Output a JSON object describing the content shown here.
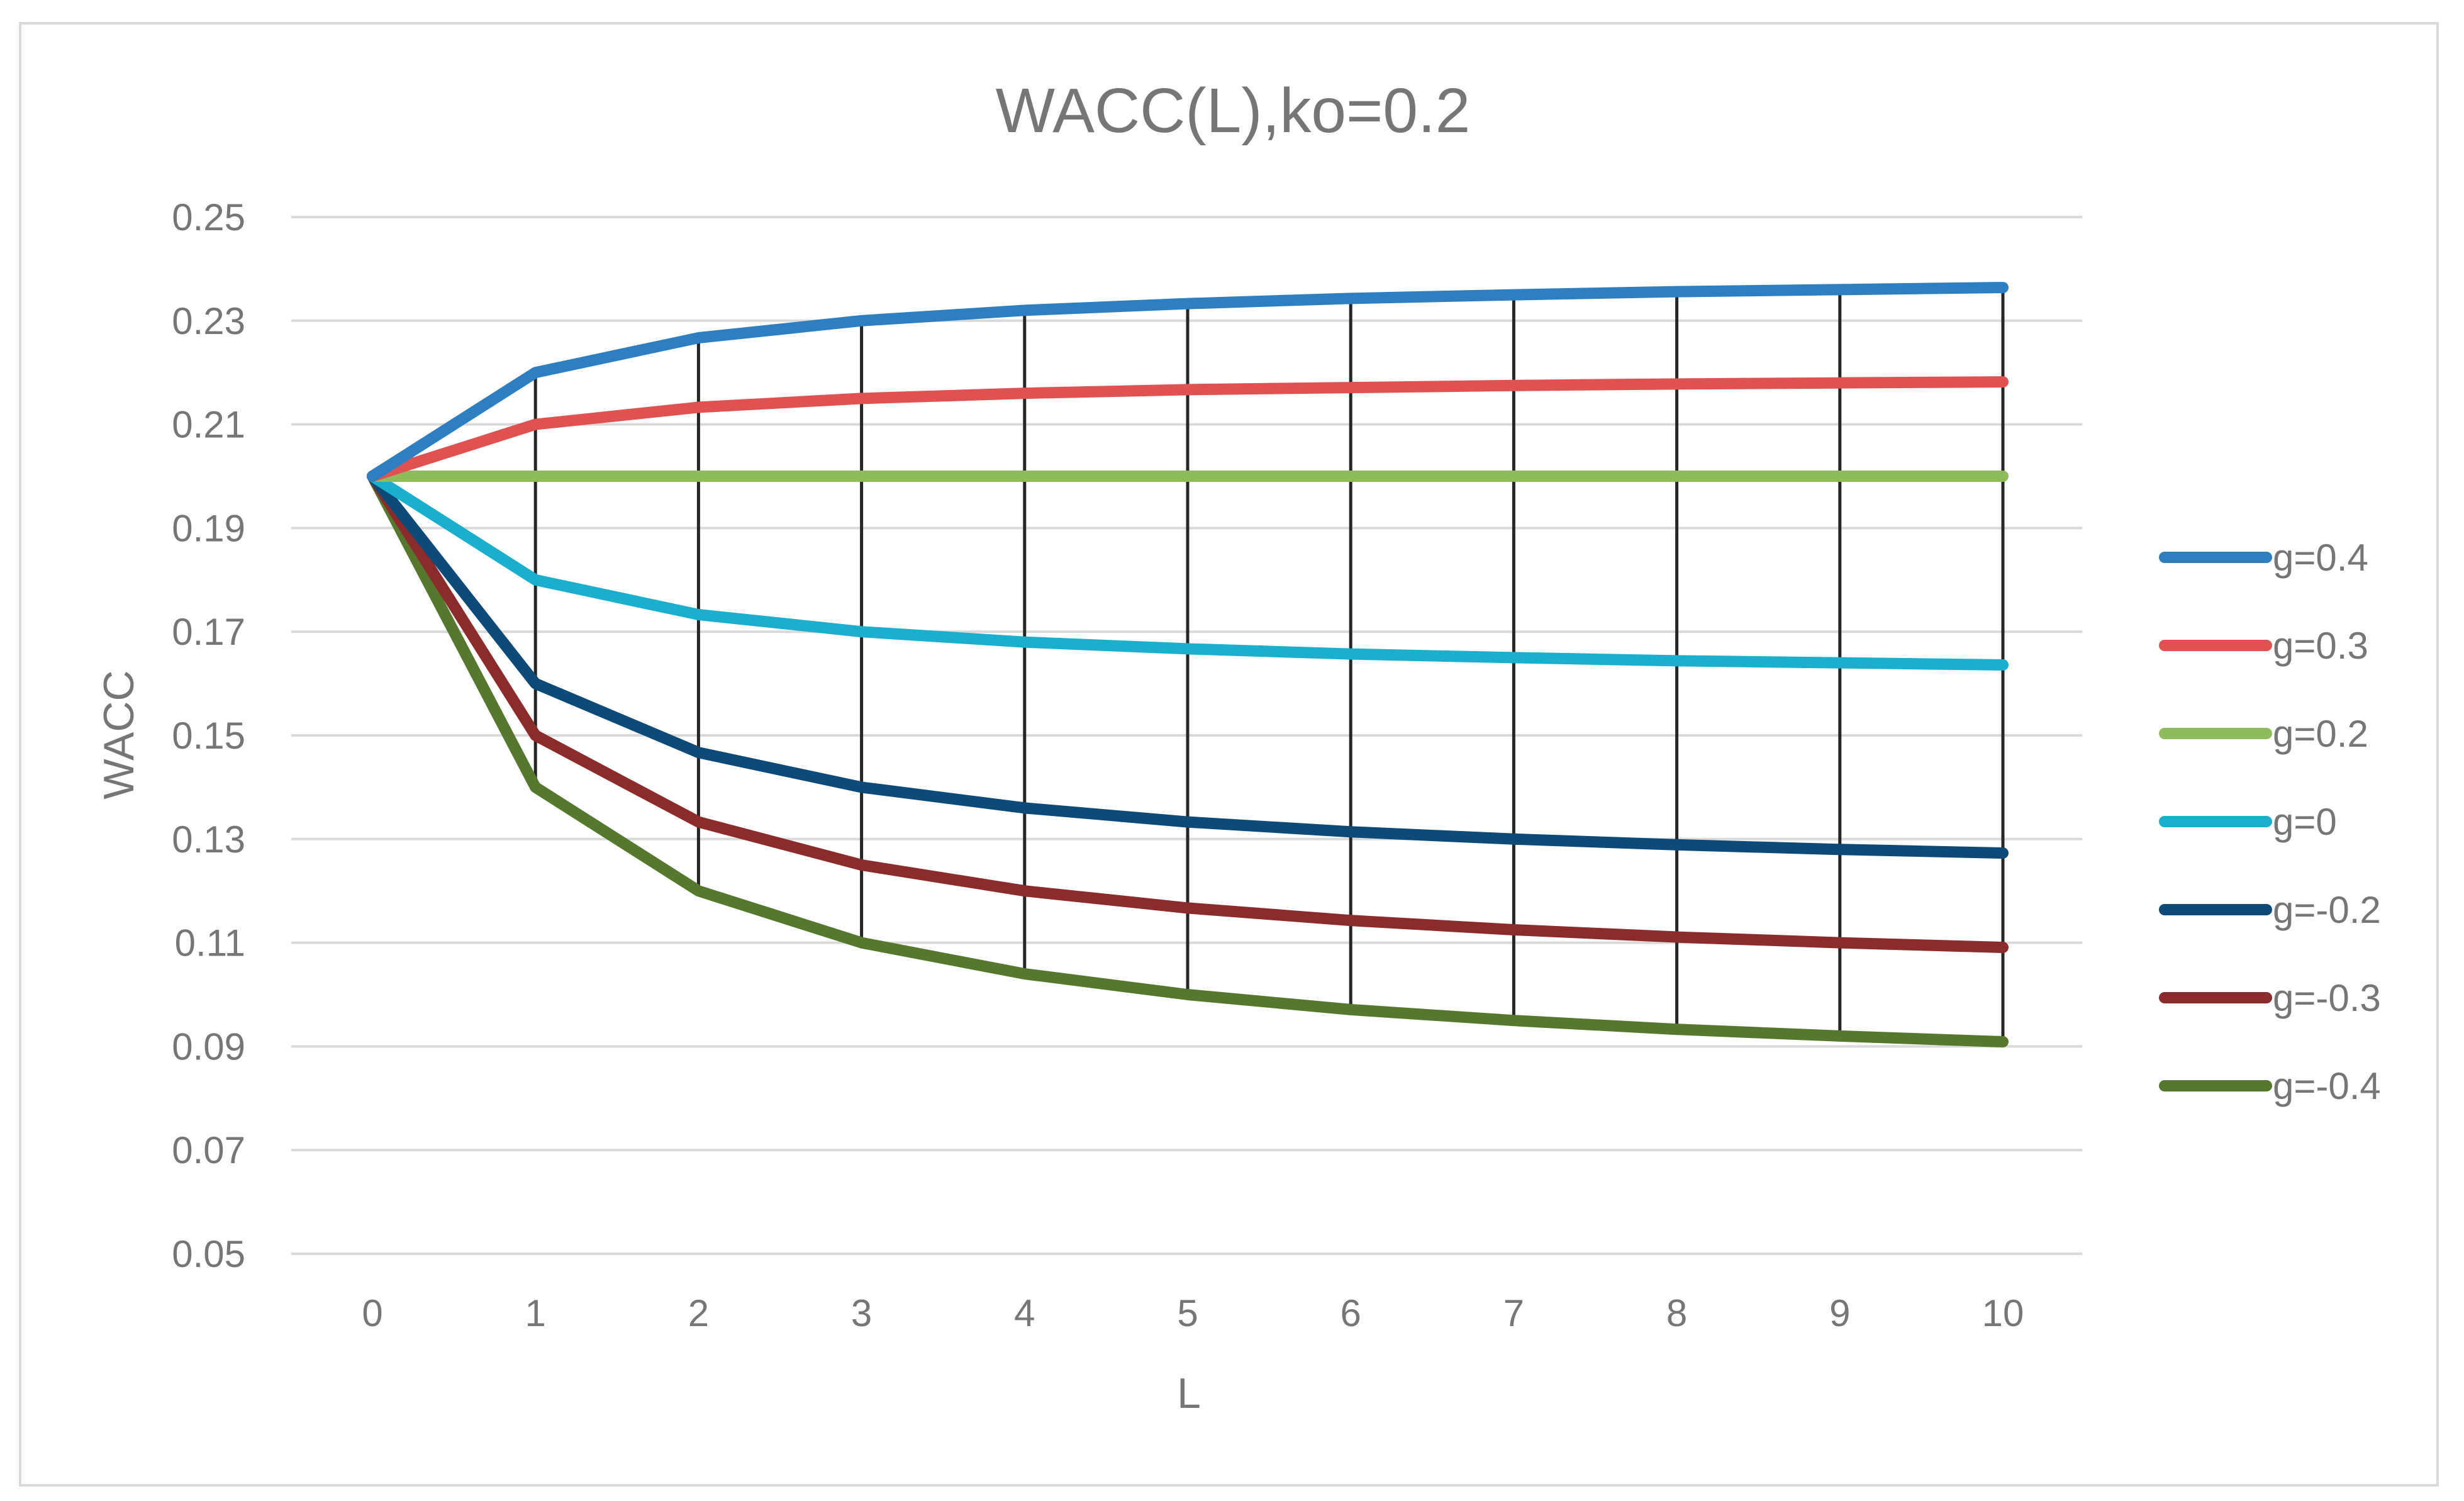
{
  "chart_data": {
    "type": "line",
    "title": "WACC(L),ko=0.2",
    "xlabel": "L",
    "ylabel": "WACC",
    "x": [
      0,
      1,
      2,
      3,
      4,
      5,
      6,
      7,
      8,
      9,
      10
    ],
    "x_tick_labels": [
      "0",
      "1",
      "2",
      "3",
      "4",
      "5",
      "6",
      "7",
      "8",
      "9",
      "10"
    ],
    "ylim": [
      0.05,
      0.25
    ],
    "y_ticks": [
      0.05,
      0.07,
      0.09,
      0.11,
      0.13,
      0.15,
      0.17,
      0.19,
      0.21,
      0.23,
      0.25
    ],
    "y_tick_labels": [
      "0.05",
      "0.07",
      "0.09",
      "0.11",
      "0.13",
      "0.15",
      "0.17",
      "0.19",
      "0.21",
      "0.23",
      "0.25"
    ],
    "grid": "horizontal",
    "drop_lines": true,
    "legend_position": "right",
    "series": [
      {
        "name": "g=0.4",
        "color": "#2e7fc1",
        "values": [
          0.2,
          0.22,
          0.2267,
          0.23,
          0.232,
          0.2333,
          0.2343,
          0.235,
          0.2356,
          0.236,
          0.2364
        ]
      },
      {
        "name": "g=0.3",
        "color": "#e05252",
        "values": [
          0.2,
          0.21,
          0.2133,
          0.215,
          0.216,
          0.2167,
          0.2171,
          0.2175,
          0.2178,
          0.218,
          0.2182
        ]
      },
      {
        "name": "g=0.2",
        "color": "#8fbc5a",
        "values": [
          0.2,
          0.2,
          0.2,
          0.2,
          0.2,
          0.2,
          0.2,
          0.2,
          0.2,
          0.2,
          0.2
        ]
      },
      {
        "name": "g=0",
        "color": "#1aafcc",
        "values": [
          0.2,
          0.18,
          0.1733,
          0.17,
          0.168,
          0.1667,
          0.1657,
          0.165,
          0.1644,
          0.164,
          0.1636
        ]
      },
      {
        "name": "g=-0.2",
        "color": "#0e4a78",
        "values": [
          0.2,
          0.16,
          0.1467,
          0.14,
          0.136,
          0.1333,
          0.1314,
          0.13,
          0.1289,
          0.128,
          0.1273
        ]
      },
      {
        "name": "g=-0.3",
        "color": "#8b2b2b",
        "values": [
          0.2,
          0.15,
          0.1333,
          0.125,
          0.12,
          0.1167,
          0.1143,
          0.1125,
          0.1111,
          0.11,
          0.1091
        ]
      },
      {
        "name": "g=-0.4",
        "color": "#56782e",
        "values": [
          0.2,
          0.14,
          0.12,
          0.11,
          0.104,
          0.1,
          0.0971,
          0.095,
          0.0933,
          0.092,
          0.0909
        ]
      }
    ]
  },
  "colors": {
    "gridline": "#d9d9d9",
    "drop_line": "#262626",
    "text": "#767676"
  }
}
